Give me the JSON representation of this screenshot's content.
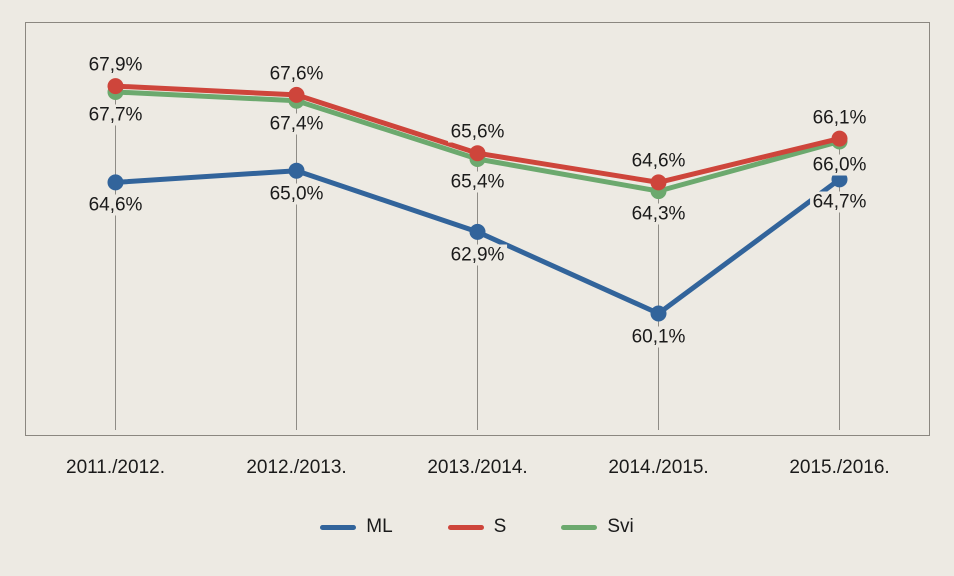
{
  "chart_data": {
    "type": "line",
    "title": "",
    "xlabel": "",
    "ylabel": "",
    "categories": [
      "2011./2012.",
      "2012./2013.",
      "2013./2014.",
      "2014./2015.",
      "2015./2016."
    ],
    "series": [
      {
        "name": "ML",
        "color": "#32649B",
        "values": [
          64.6,
          65.0,
          62.9,
          60.1,
          64.7
        ],
        "labels": [
          "64,6%",
          "65,0%",
          "62,9%",
          "60,1%",
          "64,7%"
        ],
        "label_position": "below"
      },
      {
        "name": "S",
        "color": "#CE453B",
        "values": [
          67.9,
          67.6,
          65.6,
          64.6,
          66.1
        ],
        "labels": [
          "67,9%",
          "67,6%",
          "65,6%",
          "64,6%",
          "66,1%"
        ],
        "label_position": "above"
      },
      {
        "name": "Svi",
        "color": "#6CA96E",
        "values": [
          67.7,
          67.4,
          65.4,
          64.3,
          66.0
        ],
        "labels": [
          "67,7%",
          "67,4%",
          "65,4%",
          "64,3%",
          "66,0%"
        ],
        "label_position": "below"
      }
    ],
    "ylim": [
      55.9,
      70.1
    ],
    "legend_position": "bottom",
    "legend_order": [
      "ML",
      "S",
      "Svi"
    ],
    "grid": "vertical drop line at each category from top point to x-axis",
    "decimal_separator": ",",
    "colors": {
      "background": "#EDEAE3",
      "plot_border": "#8B8780",
      "drop_line": "#8F8C86",
      "text": "#1A1A1A"
    }
  }
}
